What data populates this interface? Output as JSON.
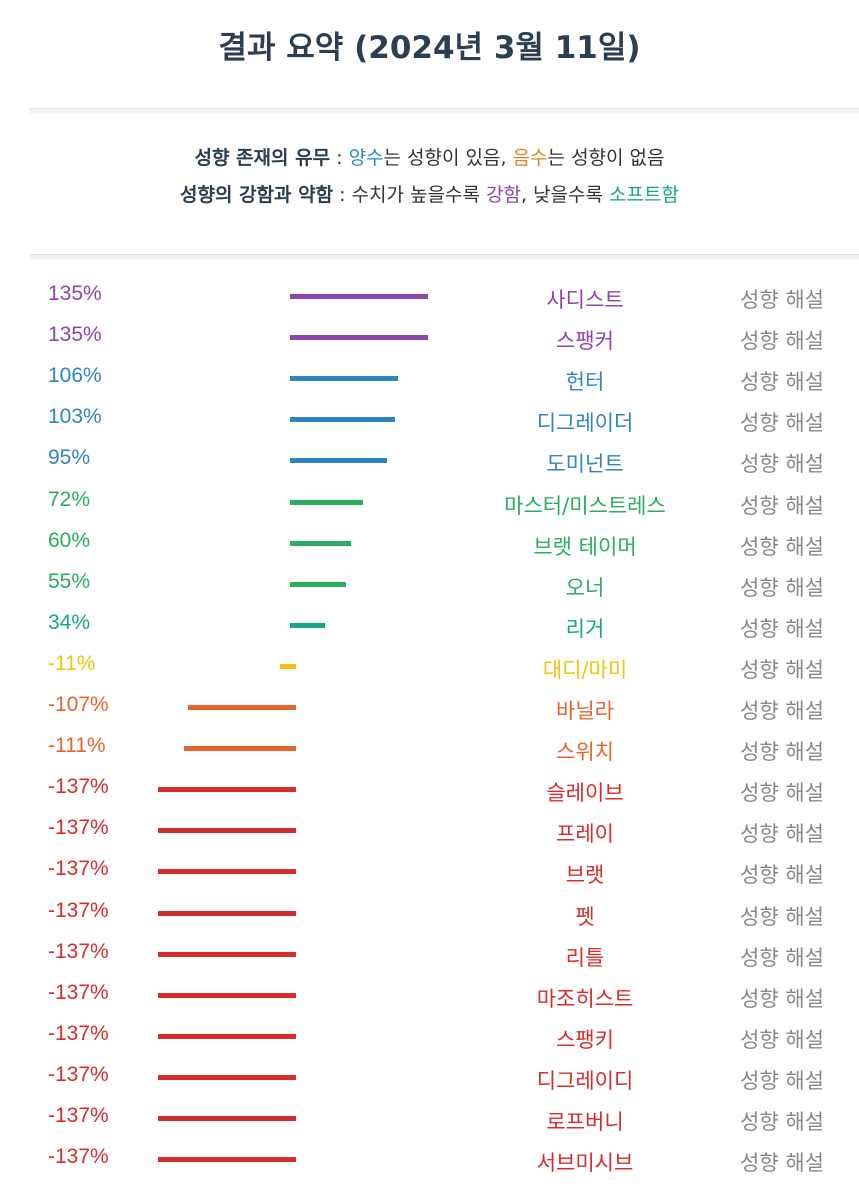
{
  "title": "결과 요약 (2024년 3월 11일)",
  "legend": {
    "line1": {
      "label": "성향 존재의 유무",
      "sep": " : ",
      "positive": "양수",
      "positive_text": "는 성향이 있음, ",
      "negative": "음수",
      "negative_text": "는 성향이 없음"
    },
    "line2": {
      "label": "성향의 강함과 약함",
      "sep": " : ",
      "text1": "수치가 높을수록 ",
      "strong": "강함",
      "text2": ", 낮을수록 ",
      "soft": "소프트함"
    }
  },
  "explain_label": "성향 해설",
  "results": [
    {
      "pct": "135%",
      "value": 135,
      "name": "사디스트",
      "color": "#8e44ad"
    },
    {
      "pct": "135%",
      "value": 135,
      "name": "스팽커",
      "color": "#8e44ad"
    },
    {
      "pct": "106%",
      "value": 106,
      "name": "헌터",
      "color": "#2e86c1"
    },
    {
      "pct": "103%",
      "value": 103,
      "name": "디그레이더",
      "color": "#2e86c1"
    },
    {
      "pct": "95%",
      "value": 95,
      "name": "도미넌트",
      "color": "#2e86c1"
    },
    {
      "pct": "72%",
      "value": 72,
      "name": "마스터/미스트레스",
      "color": "#27ae60"
    },
    {
      "pct": "60%",
      "value": 60,
      "name": "브랫 테이머",
      "color": "#27ae60"
    },
    {
      "pct": "55%",
      "value": 55,
      "name": "오너",
      "color": "#27ae60"
    },
    {
      "pct": "34%",
      "value": 34,
      "name": "리거",
      "color": "#17a589"
    },
    {
      "pct": "-11%",
      "value": -11,
      "name": "대디/마미",
      "color": "#f1c40f"
    },
    {
      "pct": "-107%",
      "value": -107,
      "name": "바닐라",
      "color": "#e8642e"
    },
    {
      "pct": "-111%",
      "value": -111,
      "name": "스위치",
      "color": "#e8642e"
    },
    {
      "pct": "-137%",
      "value": -137,
      "name": "슬레이브",
      "color": "#d62c2c"
    },
    {
      "pct": "-137%",
      "value": -137,
      "name": "프레이",
      "color": "#d62c2c"
    },
    {
      "pct": "-137%",
      "value": -137,
      "name": "브랫",
      "color": "#d62c2c"
    },
    {
      "pct": "-137%",
      "value": -137,
      "name": "펫",
      "color": "#d62c2c"
    },
    {
      "pct": "-137%",
      "value": -137,
      "name": "리틀",
      "color": "#d62c2c"
    },
    {
      "pct": "-137%",
      "value": -137,
      "name": "마조히스트",
      "color": "#d62c2c"
    },
    {
      "pct": "-137%",
      "value": -137,
      "name": "스팽키",
      "color": "#d62c2c"
    },
    {
      "pct": "-137%",
      "value": -137,
      "name": "디그레이디",
      "color": "#d62c2c"
    },
    {
      "pct": "-137%",
      "value": -137,
      "name": "로프버니",
      "color": "#d62c2c"
    },
    {
      "pct": "-137%",
      "value": -137,
      "name": "서브미시브",
      "color": "#d62c2c"
    }
  ],
  "colors": {
    "title": "#2c3e50",
    "positive": "#2e86c1",
    "negative": "#e67e22",
    "strong": "#8e44ad",
    "soft": "#17a589",
    "explain": "#888888"
  }
}
